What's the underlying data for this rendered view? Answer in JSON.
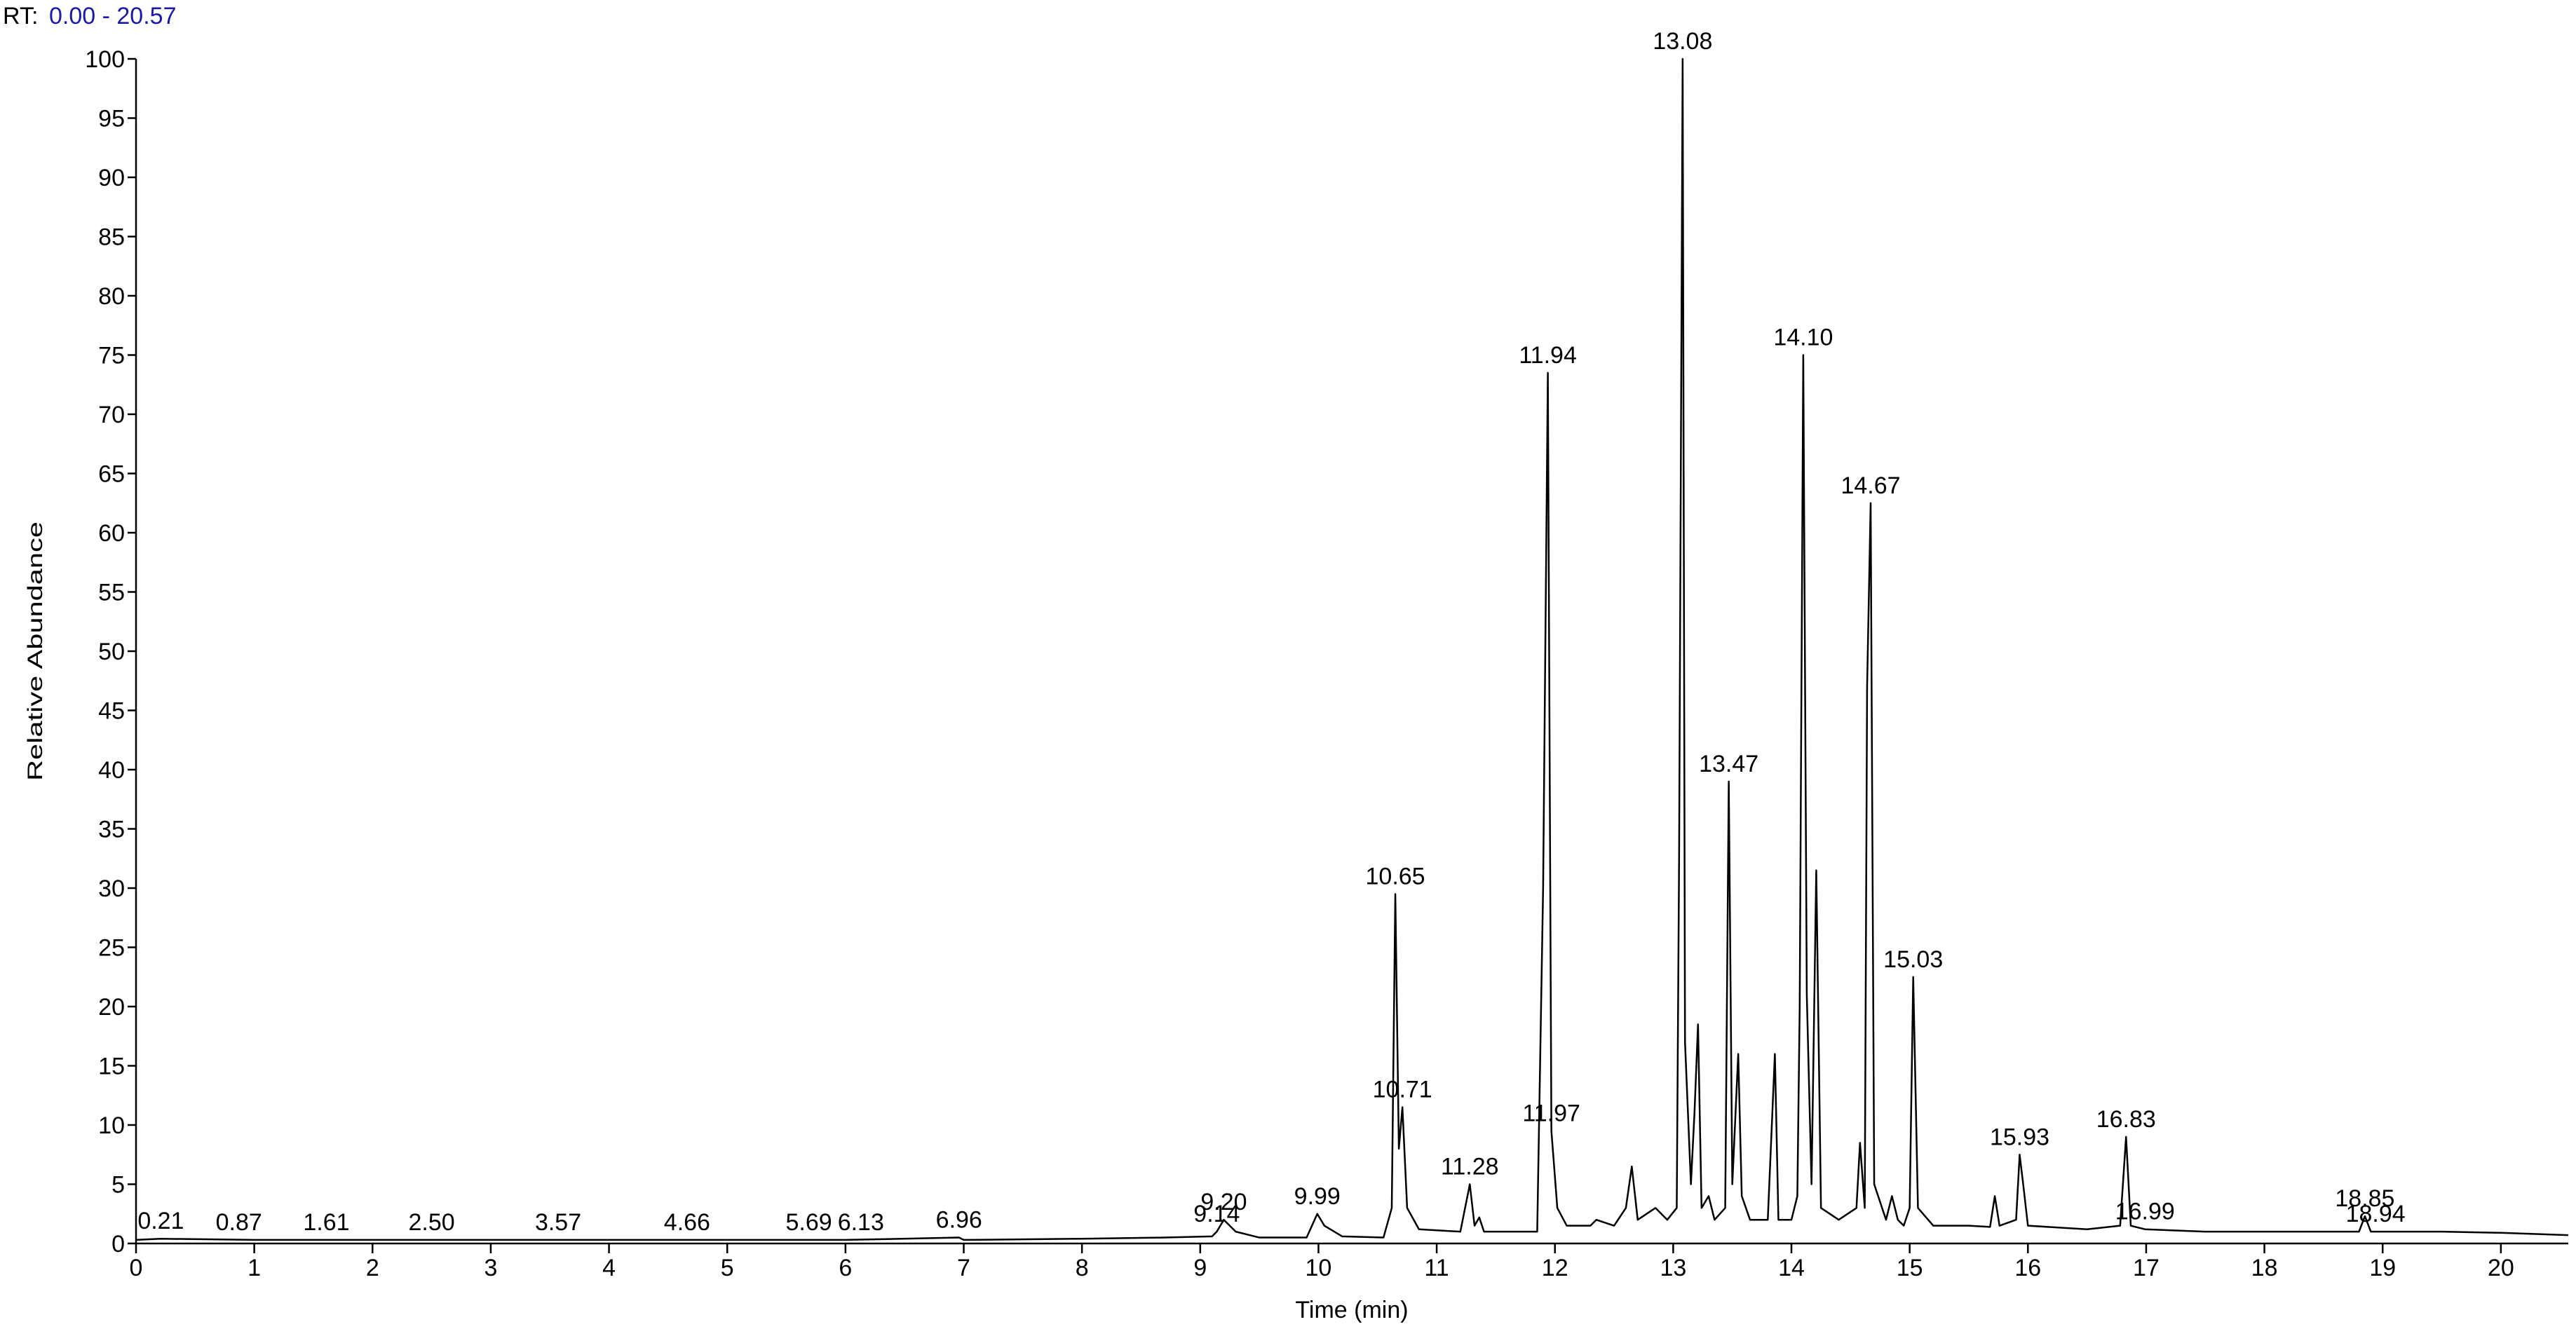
{
  "chart_data": {
    "type": "line",
    "rt_prefix": "RT:",
    "rt_range": "0.00 - 20.57",
    "x_label": "Time (min)",
    "y_label": "Relative Abundance",
    "color": "#000000",
    "xlim": [
      0,
      20.57
    ],
    "ylim": [
      0,
      100
    ],
    "xticks": [
      0,
      1,
      2,
      3,
      4,
      5,
      6,
      7,
      8,
      9,
      10,
      11,
      12,
      13,
      14,
      15,
      16,
      17,
      18,
      19,
      20
    ],
    "yticks": [
      0,
      5,
      10,
      15,
      20,
      25,
      30,
      35,
      40,
      45,
      50,
      55,
      60,
      65,
      70,
      75,
      80,
      85,
      90,
      95,
      100
    ],
    "x": [
      0,
      0.21,
      1,
      2,
      3,
      4,
      5,
      6,
      6.96,
      7,
      8,
      8.7,
      9.1,
      9.14,
      9.2,
      9.3,
      9.5,
      9.9,
      9.99,
      10.05,
      10.2,
      10.55,
      10.62,
      10.65,
      10.68,
      10.71,
      10.75,
      10.85,
      11.2,
      11.28,
      11.32,
      11.36,
      11.4,
      11.85,
      11.9,
      11.94,
      11.97,
      12.02,
      12.1,
      12.3,
      12.35,
      12.5,
      12.6,
      12.65,
      12.7,
      12.85,
      12.95,
      13.03,
      13.05,
      13.08,
      13.1,
      13.15,
      13.18,
      13.21,
      13.24,
      13.3,
      13.35,
      13.44,
      13.47,
      13.5,
      13.55,
      13.58,
      13.65,
      13.8,
      13.86,
      13.89,
      14,
      14.05,
      14.07,
      14.1,
      14.13,
      14.17,
      14.21,
      14.25,
      14.4,
      14.55,
      14.58,
      14.62,
      14.64,
      14.67,
      14.7,
      14.8,
      14.85,
      14.9,
      14.95,
      15,
      15.03,
      15.07,
      15.2,
      15.5,
      15.68,
      15.72,
      15.76,
      15.9,
      15.93,
      15.96,
      16,
      16.5,
      16.78,
      16.83,
      16.87,
      16.99,
      17.5,
      18.5,
      18.8,
      18.85,
      18.9,
      18.94,
      19.5,
      20,
      20.57
    ],
    "values": [
      0.3,
      0.4,
      0.3,
      0.3,
      0.3,
      0.3,
      0.3,
      0.3,
      0.5,
      0.3,
      0.4,
      0.5,
      0.6,
      1,
      2,
      1,
      0.5,
      0.5,
      2.5,
      1.5,
      0.6,
      0.5,
      3,
      29.5,
      8,
      11.5,
      3,
      1.2,
      1,
      5,
      1.5,
      2.2,
      1,
      1,
      30,
      73.5,
      9.5,
      3,
      1.5,
      1.5,
      2,
      1.5,
      3,
      6.5,
      2,
      3,
      2,
      3,
      32.5,
      100,
      17,
      5,
      11,
      18.5,
      3,
      4,
      2,
      3,
      39,
      5,
      16,
      4,
      2,
      2,
      16,
      2,
      2,
      4,
      20,
      75,
      21,
      5,
      31.5,
      3,
      2,
      3,
      8.5,
      3,
      47,
      62.5,
      5,
      2,
      4,
      2,
      1.5,
      3,
      22.5,
      3,
      1.5,
      1.5,
      1.4,
      4,
      1.5,
      2,
      7.5,
      5,
      1.5,
      1.2,
      1.5,
      9,
      1.5,
      1.2,
      1,
      1,
      1,
      2.3,
      1,
      1,
      1,
      0.9,
      0.7
    ],
    "peaks": [
      {
        "x": 0.21,
        "y": 0.4,
        "label": "0.21"
      },
      {
        "x": 0.87,
        "y": 0.3,
        "label": "0.87"
      },
      {
        "x": 1.61,
        "y": 0.3,
        "label": "1.61"
      },
      {
        "x": 2.5,
        "y": 0.3,
        "label": "2.50"
      },
      {
        "x": 3.57,
        "y": 0.3,
        "label": "3.57"
      },
      {
        "x": 4.66,
        "y": 0.3,
        "label": "4.66"
      },
      {
        "x": 5.69,
        "y": 0.3,
        "label": "5.69"
      },
      {
        "x": 6.13,
        "y": 0.3,
        "label": "6.13"
      },
      {
        "x": 6.96,
        "y": 0.5,
        "label": "6.96"
      },
      {
        "x": 9.14,
        "y": 1,
        "label": "9.14"
      },
      {
        "x": 9.2,
        "y": 2,
        "label": "9.20"
      },
      {
        "x": 9.99,
        "y": 2.5,
        "label": "9.99"
      },
      {
        "x": 10.65,
        "y": 29.5,
        "label": "10.65"
      },
      {
        "x": 10.71,
        "y": 11.5,
        "label": "10.71"
      },
      {
        "x": 11.28,
        "y": 5,
        "label": "11.28"
      },
      {
        "x": 11.94,
        "y": 73.5,
        "label": "11.94"
      },
      {
        "x": 11.97,
        "y": 9.5,
        "label": "11.97"
      },
      {
        "x": 13.08,
        "y": 100,
        "label": "13.08"
      },
      {
        "x": 13.47,
        "y": 39,
        "label": "13.47"
      },
      {
        "x": 14.1,
        "y": 75,
        "label": "14.10"
      },
      {
        "x": 14.67,
        "y": 62.5,
        "label": "14.67"
      },
      {
        "x": 15.03,
        "y": 22.5,
        "label": "15.03"
      },
      {
        "x": 15.93,
        "y": 7.5,
        "label": "15.93"
      },
      {
        "x": 16.83,
        "y": 9,
        "label": "16.83"
      },
      {
        "x": 16.99,
        "y": 1.2,
        "label": "16.99"
      },
      {
        "x": 18.85,
        "y": 2.3,
        "label": "18.85"
      },
      {
        "x": 18.94,
        "y": 1,
        "label": "18.94"
      }
    ]
  }
}
